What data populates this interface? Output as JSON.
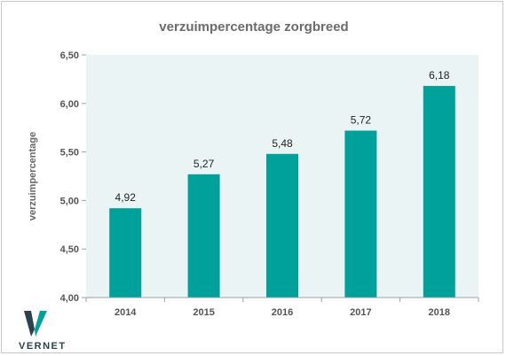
{
  "chart_data": {
    "type": "bar",
    "title": "verzuimpercentage zorgbreed",
    "xlabel": "",
    "ylabel": "verzuimpercentage",
    "categories": [
      "2014",
      "2015",
      "2016",
      "2017",
      "2018"
    ],
    "values": [
      4.92,
      5.27,
      5.48,
      5.72,
      6.18
    ],
    "value_labels": [
      "4,92",
      "5,27",
      "5,48",
      "5,72",
      "6,18"
    ],
    "ylim": [
      4.0,
      6.5
    ],
    "yticks": [
      4.0,
      4.5,
      5.0,
      5.5,
      6.0,
      6.5
    ],
    "ytick_labels": [
      "4,00",
      "4,50",
      "5,00",
      "5,50",
      "6,00",
      "6,50"
    ],
    "grid": false,
    "legend": "none",
    "colors": {
      "bar": "#00a19a",
      "plot_background": "#eaf4f4",
      "axis": "#9aa0a0"
    }
  },
  "logo": {
    "text": "VERNET",
    "colors": [
      "#2a4250",
      "#00a19a"
    ]
  }
}
